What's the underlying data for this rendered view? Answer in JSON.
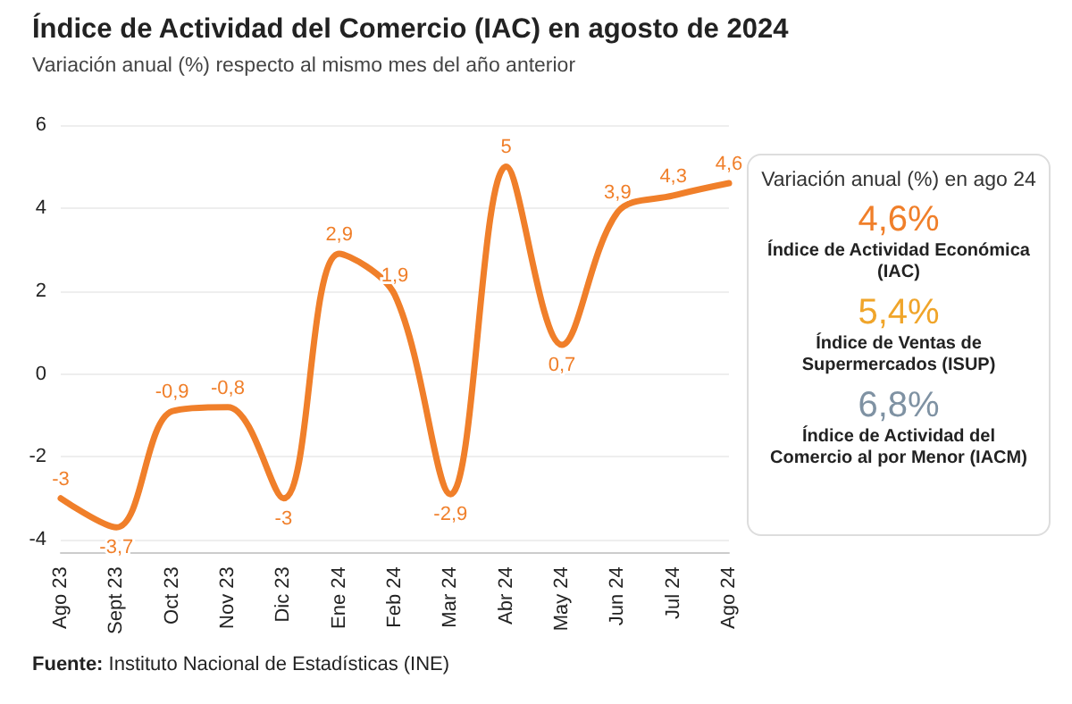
{
  "chart_data": [
    {
      "type": "line",
      "title": "Índice de Actividad del Comercio (IAC) en agosto de 2024",
      "subtitle": "Variación anual (%) respecto al mismo mes del año anterior",
      "categories": [
        "Ago 23",
        "Sept 23",
        "Oct 23",
        "Nov 23",
        "Dic 23",
        "Ene 24",
        "Feb 24",
        "Mar 24",
        "Abr 24",
        "May 24",
        "Jun 24",
        "Jul 24",
        "Ago 24"
      ],
      "series": [
        {
          "color": "#f07f2a",
          "values": [
            -3,
            -3.7,
            -0.9,
            -0.8,
            -3,
            2.9,
            1.9,
            -2.9,
            5,
            0.7,
            3.9,
            4.3,
            4.6
          ],
          "value_labels": [
            "-3",
            "-3,7",
            "-0,9",
            "-0,8",
            "-3",
            "2,9",
            "1,9",
            "-2,9",
            "5",
            "0,7",
            "3,9",
            "4,3",
            "4,6"
          ]
        }
      ],
      "ylim": [
        -4.3,
        6
      ],
      "yticks": [
        -4,
        -2,
        0,
        2,
        4,
        6
      ],
      "grid": "y",
      "marker": "none",
      "line_style": "solid",
      "annotations": [
        "Fuente: Instituto Nacional de Estadísticas (INE)"
      ]
    },
    {
      "type": "other",
      "title": "Variación anual (%) en ago 24",
      "annotations": [
        "4,6%",
        "Índice de Actividad Económica (IAC)",
        "5,4%",
        "Índice de Ventas de Supermercados (ISUP)",
        "6,8%",
        "Índice de Actividad del Comercio al por Menor (IACM)"
      ],
      "colors": [
        "#f07f2a",
        null,
        "#f0a52a",
        null,
        "#7f92a3",
        null
      ]
    }
  ]
}
